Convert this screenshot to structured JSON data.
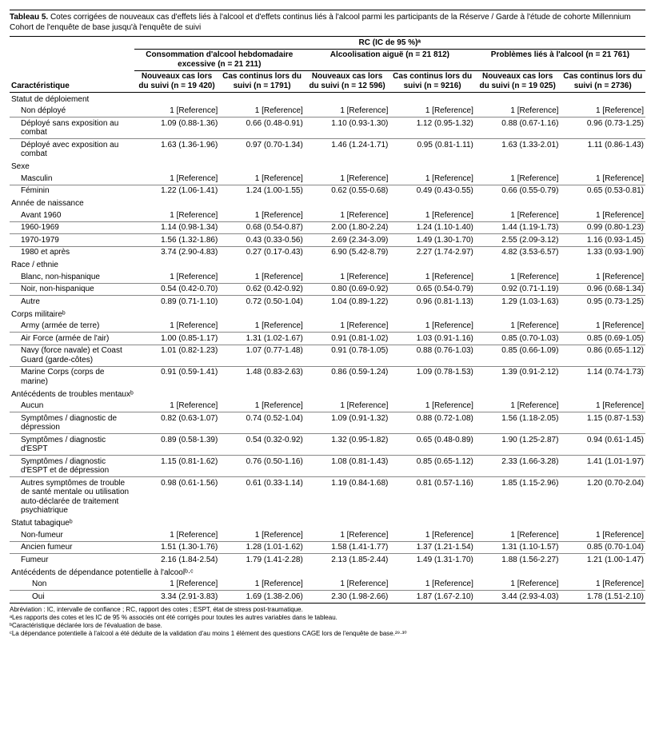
{
  "title_label": "Tableau 5.",
  "title_text": "Cotes corrigées de nouveaux cas d'effets liés à l'alcool et d'effets continus liés à l'alcool parmi les participants de la Réserve / Garde à l'étude de cohorte Millennium Cohort de l'enquête de base jusqu'à l'enquête de suivi",
  "rc_header": "RC (IC de 95 %)ᵃ",
  "char_header": "Caractéristique",
  "groups": [
    {
      "title": "Consommation d'alcool hebdomadaire excessive (n = 21 211)",
      "new": "Nouveaux cas lors du suivi (n = 19 420)",
      "cont": "Cas continus lors du suivi (n = 1791)"
    },
    {
      "title": "Alcoolisation aiguë (n = 21 812)",
      "new": "Nouveaux cas lors du suivi (n = 12 596)",
      "cont": "Cas continus lors du suivi (n = 9216)"
    },
    {
      "title": "Problèmes liés à l'alcool (n = 21 761)",
      "new": "Nouveaux cas lors du suivi (n = 19 025)",
      "cont": "Cas continus lors du suivi (n = 2736)"
    }
  ],
  "sections": [
    {
      "label": "Statut de déploiement",
      "rows": [
        {
          "label": "Non déployé",
          "v": [
            "1 [Reference]",
            "1 [Reference]",
            "1 [Reference]",
            "1 [Reference]",
            "1 [Reference]",
            "1 [Reference]"
          ]
        },
        {
          "label": "Déployé sans exposition au combat",
          "v": [
            "1.09 (0.88-1.36)",
            "0.66 (0.48-0.91)",
            "1.10 (0.93-1.30)",
            "1.12 (0.95-1.32)",
            "0.88 (0.67-1.16)",
            "0.96 (0.73-1.25)"
          ]
        },
        {
          "label": "Déployé avec exposition au combat",
          "v": [
            "1.63 (1.36-1.96)",
            "0.97 (0.70-1.34)",
            "1.46 (1.24-1.71)",
            "0.95 (0.81-1.11)",
            "1.63 (1.33-2.01)",
            "1.11 (0.86-1.43)"
          ]
        }
      ]
    },
    {
      "label": "Sexe",
      "rows": [
        {
          "label": "Masculin",
          "v": [
            "1 [Reference]",
            "1 [Reference]",
            "1 [Reference]",
            "1 [Reference]",
            "1 [Reference]",
            "1 [Reference]"
          ]
        },
        {
          "label": "Féminin",
          "v": [
            "1.22 (1.06-1.41)",
            "1.24 (1.00-1.55)",
            "0.62 (0.55-0.68)",
            "0.49 (0.43-0.55)",
            "0.66 (0.55-0.79)",
            "0.65 (0.53-0.81)"
          ]
        }
      ]
    },
    {
      "label": "Année de naissance",
      "rows": [
        {
          "label": "Avant 1960",
          "v": [
            "1 [Reference]",
            "1 [Reference]",
            "1 [Reference]",
            "1 [Reference]",
            "1 [Reference]",
            "1 [Reference]"
          ]
        },
        {
          "label": "1960-1969",
          "v": [
            "1.14 (0.98-1.34)",
            "0.68 (0.54-0.87)",
            "2.00 (1.80-2.24)",
            "1.24 (1.10-1.40)",
            "1.44 (1.19-1.73)",
            "0.99 (0.80-1.23)"
          ]
        },
        {
          "label": "1970-1979",
          "v": [
            "1.56 (1.32-1.86)",
            "0.43 (0.33-0.56)",
            "2.69 (2.34-3.09)",
            "1.49 (1.30-1.70)",
            "2.55 (2.09-3.12)",
            "1.16 (0.93-1.45)"
          ]
        },
        {
          "label": "1980 et après",
          "v": [
            "3.74 (2.90-4.83)",
            "0.27 (0.17-0.43)",
            "6.90 (5.42-8.79)",
            "2.27 (1.74-2.97)",
            "4.82 (3.53-6.57)",
            "1.33 (0.93-1.90)"
          ]
        }
      ]
    },
    {
      "label": "Race / ethnie",
      "rows": [
        {
          "label": "Blanc, non-hispanique",
          "v": [
            "1 [Reference]",
            "1 [Reference]",
            "1 [Reference]",
            "1 [Reference]",
            "1 [Reference]",
            "1 [Reference]"
          ]
        },
        {
          "label": "Noir, non-hispanique",
          "v": [
            "0.54 (0.42-0.70)",
            "0.62 (0.42-0.92)",
            "0.80 (0.69-0.92)",
            "0.65 (0.54-0.79)",
            "0.92 (0.71-1.19)",
            "0.96 (0.68-1.34)"
          ]
        },
        {
          "label": "Autre",
          "v": [
            "0.89 (0.71-1.10)",
            "0.72 (0.50-1.04)",
            "1.04 (0.89-1.22)",
            "0.96 (0.81-1.13)",
            "1.29 (1.03-1.63)",
            "0.95 (0.73-1.25)"
          ]
        }
      ]
    },
    {
      "label": "Corps militaireᵇ",
      "rows": [
        {
          "label": "Army (armée de terre)",
          "v": [
            "1 [Reference]",
            "1 [Reference]",
            "1 [Reference]",
            "1 [Reference]",
            "1 [Reference]",
            "1 [Reference]"
          ]
        },
        {
          "label": "Air Force (armée de l'air)",
          "v": [
            "1.00 (0.85-1.17)",
            "1.31 (1.02-1.67)",
            "0.91 (0.81-1.02)",
            "1.03 (0.91-1.16)",
            "0.85 (0.70-1.03)",
            "0.85 (0.69-1.05)"
          ]
        },
        {
          "label": "Navy (force navale) et Coast Guard (garde-côtes)",
          "v": [
            "1.01 (0.82-1.23)",
            "1.07 (0.77-1.48)",
            "0.91 (0.78-1.05)",
            "0.88 (0.76-1.03)",
            "0.85 (0.66-1.09)",
            "0.86 (0.65-1.12)"
          ]
        },
        {
          "label": "Marine Corps (corps de marine)",
          "v": [
            "0.91 (0.59-1.41)",
            "1.48 (0.83-2.63)",
            "0.86 (0.59-1.24)",
            "1.09 (0.78-1.53)",
            "1.39 (0.91-2.12)",
            "1.14 (0.74-1.73)"
          ]
        }
      ]
    },
    {
      "label": "Antécédents de troubles mentauxᵇ",
      "rows": [
        {
          "label": "Aucun",
          "v": [
            "1 [Reference]",
            "1 [Reference]",
            "1 [Reference]",
            "1 [Reference]",
            "1 [Reference]",
            "1 [Reference]"
          ]
        },
        {
          "label": "Symptômes / diagnostic de dépression",
          "v": [
            "0.82 (0.63-1.07)",
            "0.74 (0.52-1.04)",
            "1.09 (0.91-1.32)",
            "0.88 (0.72-1.08)",
            "1.56 (1.18-2.05)",
            "1.15 (0.87-1.53)"
          ]
        },
        {
          "label": "Symptômes / diagnostic d'ESPT",
          "v": [
            "0.89 (0.58-1.39)",
            "0.54 (0.32-0.92)",
            "1.32 (0.95-1.82)",
            "0.65 (0.48-0.89)",
            "1.90 (1.25-2.87)",
            "0.94 (0.61-1.45)"
          ]
        },
        {
          "label": "Symptômes / diagnostic d'ESPT et de dépression",
          "v": [
            "1.15 (0.81-1.62)",
            "0.76 (0.50-1.16)",
            "1.08 (0.81-1.43)",
            "0.85 (0.65-1.12)",
            "2.33 (1.66-3.28)",
            "1.41 (1.01-1.97)"
          ]
        },
        {
          "label": "Autres symptômes de trouble de santé mentale ou utilisation auto-déclarée de traitement psychiatrique",
          "v": [
            "0.98 (0.61-1.56)",
            "0.61 (0.33-1.14)",
            "1.19 (0.84-1.68)",
            "0.81 (0.57-1.16)",
            "1.85 (1.15-2.96)",
            "1.20 (0.70-2.04)"
          ]
        }
      ]
    },
    {
      "label": "Statut tabagiqueᵇ",
      "rows": [
        {
          "label": "Non-fumeur",
          "v": [
            "1 [Reference]",
            "1 [Reference]",
            "1 [Reference]",
            "1 [Reference]",
            "1 [Reference]",
            "1 [Reference]"
          ]
        },
        {
          "label": "Ancien fumeur",
          "v": [
            "1.51 (1.30-1.76)",
            "1.28 (1.01-1.62)",
            "1.58 (1.41-1.77)",
            "1.37 (1.21-1.54)",
            "1.31 (1.10-1.57)",
            "0.85 (0.70-1.04)"
          ]
        },
        {
          "label": "Fumeur",
          "v": [
            "2.16 (1.84-2.54)",
            "1.79 (1.41-2.28)",
            "2.13 (1.85-2.44)",
            "1.49 (1.31-1.70)",
            "1.88 (1.56-2.27)",
            "1.21 (1.00-1.47)"
          ]
        }
      ]
    },
    {
      "label": "Antécédents de dépendance potentielle à l'alcoolᵇ·ᶜ",
      "rows": [
        {
          "label": "Non",
          "v": [
            "1 [Reference]",
            "1 [Reference]",
            "1 [Reference]",
            "1 [Reference]",
            "1 [Reference]",
            "1 [Reference]"
          ]
        },
        {
          "label": "Oui",
          "v": [
            "3.34 (2.91-3.83)",
            "1.69 (1.38-2.06)",
            "2.30 (1.98-2.66)",
            "1.87 (1.67-2.10)",
            "3.44 (2.93-4.03)",
            "1.78 (1.51-2.10)"
          ]
        }
      ]
    }
  ],
  "footnotes": [
    "Abréviation : IC, intervalle de confiance ; RC, rapport des cotes ; ESPT, état de stress post-traumatique.",
    "ᵃLes rapports des cotes et les IC de 95 % associés ont été corrigés pour toutes les autres variables dans le tableau.",
    "ᵇCaractéristique déclarée lors de l'évaluation de base.",
    "ᶜLa dépendance potentielle à l'alcool a été déduite de la validation d'au moins 1 élément des questions CAGE lors de l'enquête de base.²⁹·³⁰"
  ]
}
